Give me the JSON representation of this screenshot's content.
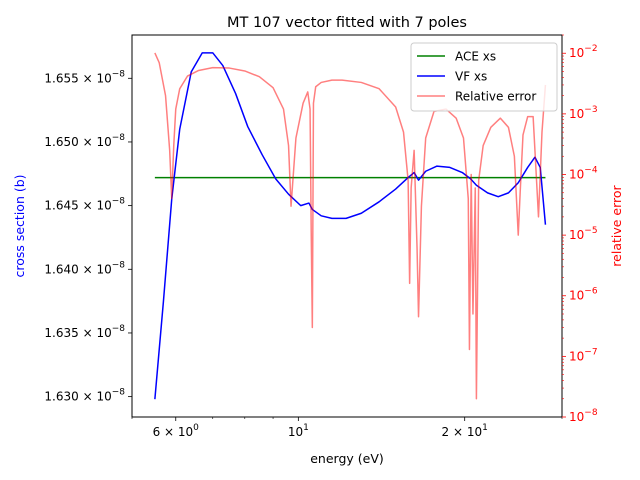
{
  "chart_data": {
    "type": "line",
    "title": "MT 107 vector fitted with 7 poles",
    "xlabel": "energy (eV)",
    "ylabel_left": "cross section (b)",
    "ylabel_right": "relative error",
    "x_scale": "log",
    "y_left_scale": "linear",
    "y_right_scale": "log",
    "xlim": [
      5.0,
      30.0
    ],
    "ylim_left": [
      1.6284e-08,
      1.6584e-08
    ],
    "ylim_right": [
      1e-08,
      0.02
    ],
    "x_ticks": [
      {
        "value": 6,
        "label": "6 × 10^0"
      },
      {
        "value": 10,
        "label": "10^1"
      },
      {
        "value": 20,
        "label": "2 × 10^1"
      }
    ],
    "y_left_ticks": [
      {
        "value": 1.63e-08,
        "label": "1.630 × 10^-8"
      },
      {
        "value": 1.635e-08,
        "label": "1.635 × 10^-8"
      },
      {
        "value": 1.64e-08,
        "label": "1.640 × 10^-8"
      },
      {
        "value": 1.645e-08,
        "label": "1.645 × 10^-8"
      },
      {
        "value": 1.65e-08,
        "label": "1.650 × 10^-8"
      },
      {
        "value": 1.655e-08,
        "label": "1.655 × 10^-8"
      }
    ],
    "y_right_ticks": [
      {
        "value": 1e-08,
        "label": "10^-8"
      },
      {
        "value": 1e-07,
        "label": "10^-7"
      },
      {
        "value": 1e-06,
        "label": "10^-6"
      },
      {
        "value": 1e-05,
        "label": "10^-5"
      },
      {
        "value": 0.0001,
        "label": "10^-4"
      },
      {
        "value": 0.001,
        "label": "10^-3"
      },
      {
        "value": 0.01,
        "label": "10^-2"
      }
    ],
    "legend_position": "top-right",
    "legend": [
      "ACE xs",
      "VF xs",
      "Relative error"
    ],
    "series": [
      {
        "name": "ACE xs",
        "axis": "left",
        "color": "#008000",
        "x": [
          5.5,
          28.0
        ],
        "y": [
          1.6472e-08,
          1.6472e-08
        ]
      },
      {
        "name": "VF xs",
        "axis": "left",
        "color": "#0000ff",
        "x": [
          5.5,
          5.7,
          5.9,
          6.1,
          6.4,
          6.7,
          7.0,
          7.3,
          7.7,
          8.1,
          8.6,
          9.1,
          9.6,
          10.1,
          10.45,
          10.6,
          11.0,
          11.5,
          12.2,
          13.0,
          14.0,
          15.0,
          15.8,
          16.2,
          16.5,
          17.0,
          17.8,
          18.8,
          19.8,
          20.5,
          21.0,
          22.0,
          23.0,
          24.0,
          25.0,
          26.0,
          26.8,
          27.4,
          28.0
        ],
        "y": [
          1.6298e-08,
          1.6375e-08,
          1.6455e-08,
          1.651e-08,
          1.6555e-08,
          1.657e-08,
          1.657e-08,
          1.656e-08,
          1.6538e-08,
          1.6512e-08,
          1.649e-08,
          1.6471e-08,
          1.6459e-08,
          1.645e-08,
          1.6452e-08,
          1.6447e-08,
          1.6442e-08,
          1.644e-08,
          1.644e-08,
          1.6444e-08,
          1.6453e-08,
          1.6463e-08,
          1.6472e-08,
          1.6476e-08,
          1.647e-08,
          1.6477e-08,
          1.6481e-08,
          1.648e-08,
          1.6476e-08,
          1.6471e-08,
          1.6466e-08,
          1.646e-08,
          1.6457e-08,
          1.646e-08,
          1.6468e-08,
          1.648e-08,
          1.6488e-08,
          1.648e-08,
          1.6435e-08
        ]
      },
      {
        "name": "Relative error",
        "axis": "right",
        "color": "#ff0000",
        "x": [
          5.5,
          5.6,
          5.75,
          5.85,
          5.9,
          5.95,
          6.0,
          6.1,
          6.3,
          6.6,
          7.0,
          7.5,
          8.0,
          8.5,
          9.0,
          9.4,
          9.6,
          9.7,
          9.9,
          10.2,
          10.4,
          10.5,
          10.55,
          10.6,
          10.65,
          10.75,
          11.0,
          11.5,
          12.0,
          13.0,
          14.0,
          15.0,
          15.5,
          15.8,
          15.9,
          16.0,
          16.2,
          16.4,
          16.5,
          16.7,
          17.0,
          17.6,
          18.5,
          19.3,
          19.9,
          20.3,
          20.4,
          20.55,
          20.7,
          20.9,
          21.0,
          21.2,
          21.6,
          22.3,
          23.2,
          24.0,
          24.6,
          25.0,
          25.2,
          25.5,
          26.0,
          26.6,
          27.2,
          27.6,
          28.0
        ],
        "y": [
          0.0101,
          0.007,
          0.002,
          0.00025,
          4e-05,
          0.0003,
          0.0012,
          0.0026,
          0.0042,
          0.0052,
          0.0058,
          0.0057,
          0.0051,
          0.0041,
          0.0027,
          0.0012,
          0.0003,
          3e-05,
          0.0004,
          0.0015,
          0.0023,
          0.0012,
          1.2e-05,
          3e-07,
          0.0015,
          0.0028,
          0.0033,
          0.0036,
          0.0036,
          0.0033,
          0.0026,
          0.0013,
          0.0005,
          8e-05,
          1.6e-06,
          6e-05,
          0.00025,
          6e-06,
          4.5e-07,
          3e-05,
          0.0004,
          0.0011,
          0.0012,
          0.00085,
          0.0004,
          4e-05,
          1.3e-07,
          0.0001,
          5e-07,
          6e-05,
          2e-08,
          8e-05,
          0.0003,
          0.0006,
          0.00085,
          0.0006,
          0.0002,
          1e-05,
          5e-05,
          0.00045,
          0.0009,
          0.0009,
          2e-05,
          0.0005,
          0.003
        ]
      }
    ]
  }
}
